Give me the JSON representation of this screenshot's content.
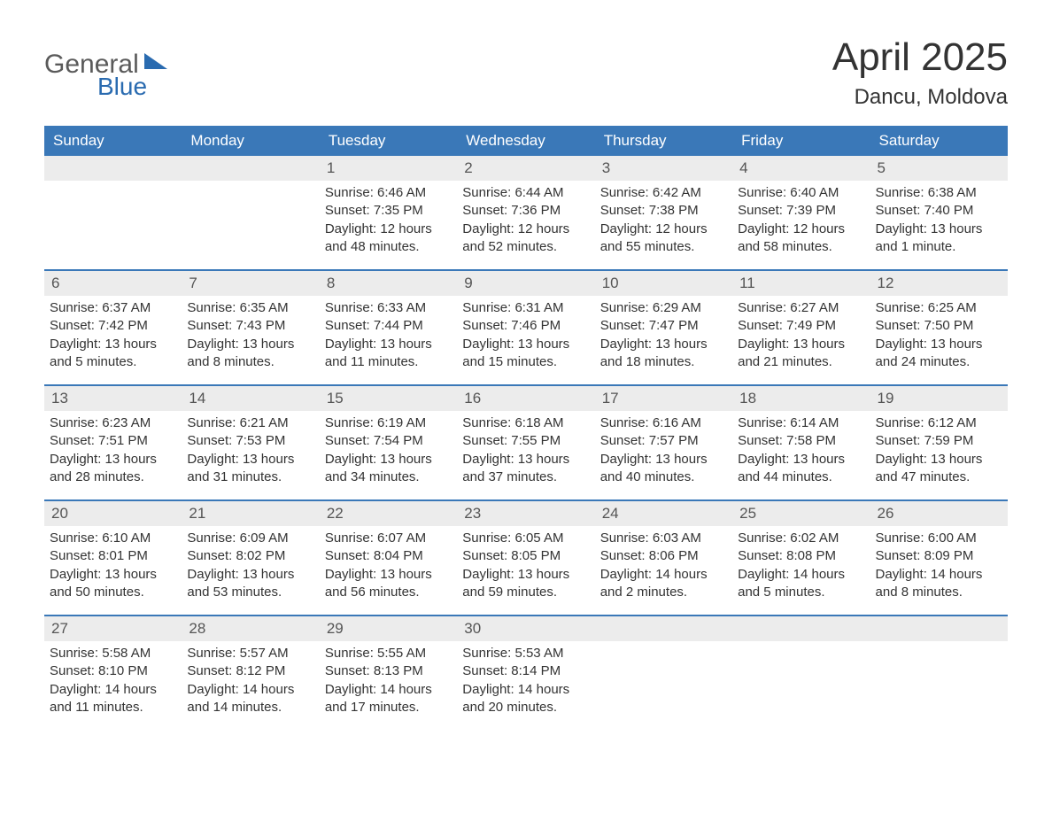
{
  "colors": {
    "header_bg": "#3a78b8",
    "header_text": "#ffffff",
    "daynum_band_bg": "#ececec",
    "daynum_text": "#555555",
    "body_text": "#333333",
    "week_divider": "#3a78b8",
    "logo_gray": "#5a5a5a",
    "logo_blue": "#2a6bb0",
    "page_bg": "#ffffff"
  },
  "typography": {
    "title_fontsize": 44,
    "location_fontsize": 24,
    "weekday_fontsize": 17,
    "daynum_fontsize": 17,
    "body_fontsize": 15,
    "logo_fontsize": 30
  },
  "logo": {
    "line1": "General",
    "line2": "Blue"
  },
  "title": {
    "month": "April 2025",
    "location": "Dancu, Moldova"
  },
  "weekdays": [
    "Sunday",
    "Monday",
    "Tuesday",
    "Wednesday",
    "Thursday",
    "Friday",
    "Saturday"
  ],
  "calendar": {
    "type": "table",
    "columns": 7,
    "rows": 5,
    "start_weekday_index": 2,
    "days": [
      {
        "num": "1",
        "sunrise": "Sunrise: 6:46 AM",
        "sunset": "Sunset: 7:35 PM",
        "day1": "Daylight: 12 hours",
        "day2": "and 48 minutes."
      },
      {
        "num": "2",
        "sunrise": "Sunrise: 6:44 AM",
        "sunset": "Sunset: 7:36 PM",
        "day1": "Daylight: 12 hours",
        "day2": "and 52 minutes."
      },
      {
        "num": "3",
        "sunrise": "Sunrise: 6:42 AM",
        "sunset": "Sunset: 7:38 PM",
        "day1": "Daylight: 12 hours",
        "day2": "and 55 minutes."
      },
      {
        "num": "4",
        "sunrise": "Sunrise: 6:40 AM",
        "sunset": "Sunset: 7:39 PM",
        "day1": "Daylight: 12 hours",
        "day2": "and 58 minutes."
      },
      {
        "num": "5",
        "sunrise": "Sunrise: 6:38 AM",
        "sunset": "Sunset: 7:40 PM",
        "day1": "Daylight: 13 hours",
        "day2": "and 1 minute."
      },
      {
        "num": "6",
        "sunrise": "Sunrise: 6:37 AM",
        "sunset": "Sunset: 7:42 PM",
        "day1": "Daylight: 13 hours",
        "day2": "and 5 minutes."
      },
      {
        "num": "7",
        "sunrise": "Sunrise: 6:35 AM",
        "sunset": "Sunset: 7:43 PM",
        "day1": "Daylight: 13 hours",
        "day2": "and 8 minutes."
      },
      {
        "num": "8",
        "sunrise": "Sunrise: 6:33 AM",
        "sunset": "Sunset: 7:44 PM",
        "day1": "Daylight: 13 hours",
        "day2": "and 11 minutes."
      },
      {
        "num": "9",
        "sunrise": "Sunrise: 6:31 AM",
        "sunset": "Sunset: 7:46 PM",
        "day1": "Daylight: 13 hours",
        "day2": "and 15 minutes."
      },
      {
        "num": "10",
        "sunrise": "Sunrise: 6:29 AM",
        "sunset": "Sunset: 7:47 PM",
        "day1": "Daylight: 13 hours",
        "day2": "and 18 minutes."
      },
      {
        "num": "11",
        "sunrise": "Sunrise: 6:27 AM",
        "sunset": "Sunset: 7:49 PM",
        "day1": "Daylight: 13 hours",
        "day2": "and 21 minutes."
      },
      {
        "num": "12",
        "sunrise": "Sunrise: 6:25 AM",
        "sunset": "Sunset: 7:50 PM",
        "day1": "Daylight: 13 hours",
        "day2": "and 24 minutes."
      },
      {
        "num": "13",
        "sunrise": "Sunrise: 6:23 AM",
        "sunset": "Sunset: 7:51 PM",
        "day1": "Daylight: 13 hours",
        "day2": "and 28 minutes."
      },
      {
        "num": "14",
        "sunrise": "Sunrise: 6:21 AM",
        "sunset": "Sunset: 7:53 PM",
        "day1": "Daylight: 13 hours",
        "day2": "and 31 minutes."
      },
      {
        "num": "15",
        "sunrise": "Sunrise: 6:19 AM",
        "sunset": "Sunset: 7:54 PM",
        "day1": "Daylight: 13 hours",
        "day2": "and 34 minutes."
      },
      {
        "num": "16",
        "sunrise": "Sunrise: 6:18 AM",
        "sunset": "Sunset: 7:55 PM",
        "day1": "Daylight: 13 hours",
        "day2": "and 37 minutes."
      },
      {
        "num": "17",
        "sunrise": "Sunrise: 6:16 AM",
        "sunset": "Sunset: 7:57 PM",
        "day1": "Daylight: 13 hours",
        "day2": "and 40 minutes."
      },
      {
        "num": "18",
        "sunrise": "Sunrise: 6:14 AM",
        "sunset": "Sunset: 7:58 PM",
        "day1": "Daylight: 13 hours",
        "day2": "and 44 minutes."
      },
      {
        "num": "19",
        "sunrise": "Sunrise: 6:12 AM",
        "sunset": "Sunset: 7:59 PM",
        "day1": "Daylight: 13 hours",
        "day2": "and 47 minutes."
      },
      {
        "num": "20",
        "sunrise": "Sunrise: 6:10 AM",
        "sunset": "Sunset: 8:01 PM",
        "day1": "Daylight: 13 hours",
        "day2": "and 50 minutes."
      },
      {
        "num": "21",
        "sunrise": "Sunrise: 6:09 AM",
        "sunset": "Sunset: 8:02 PM",
        "day1": "Daylight: 13 hours",
        "day2": "and 53 minutes."
      },
      {
        "num": "22",
        "sunrise": "Sunrise: 6:07 AM",
        "sunset": "Sunset: 8:04 PM",
        "day1": "Daylight: 13 hours",
        "day2": "and 56 minutes."
      },
      {
        "num": "23",
        "sunrise": "Sunrise: 6:05 AM",
        "sunset": "Sunset: 8:05 PM",
        "day1": "Daylight: 13 hours",
        "day2": "and 59 minutes."
      },
      {
        "num": "24",
        "sunrise": "Sunrise: 6:03 AM",
        "sunset": "Sunset: 8:06 PM",
        "day1": "Daylight: 14 hours",
        "day2": "and 2 minutes."
      },
      {
        "num": "25",
        "sunrise": "Sunrise: 6:02 AM",
        "sunset": "Sunset: 8:08 PM",
        "day1": "Daylight: 14 hours",
        "day2": "and 5 minutes."
      },
      {
        "num": "26",
        "sunrise": "Sunrise: 6:00 AM",
        "sunset": "Sunset: 8:09 PM",
        "day1": "Daylight: 14 hours",
        "day2": "and 8 minutes."
      },
      {
        "num": "27",
        "sunrise": "Sunrise: 5:58 AM",
        "sunset": "Sunset: 8:10 PM",
        "day1": "Daylight: 14 hours",
        "day2": "and 11 minutes."
      },
      {
        "num": "28",
        "sunrise": "Sunrise: 5:57 AM",
        "sunset": "Sunset: 8:12 PM",
        "day1": "Daylight: 14 hours",
        "day2": "and 14 minutes."
      },
      {
        "num": "29",
        "sunrise": "Sunrise: 5:55 AM",
        "sunset": "Sunset: 8:13 PM",
        "day1": "Daylight: 14 hours",
        "day2": "and 17 minutes."
      },
      {
        "num": "30",
        "sunrise": "Sunrise: 5:53 AM",
        "sunset": "Sunset: 8:14 PM",
        "day1": "Daylight: 14 hours",
        "day2": "and 20 minutes."
      }
    ]
  }
}
